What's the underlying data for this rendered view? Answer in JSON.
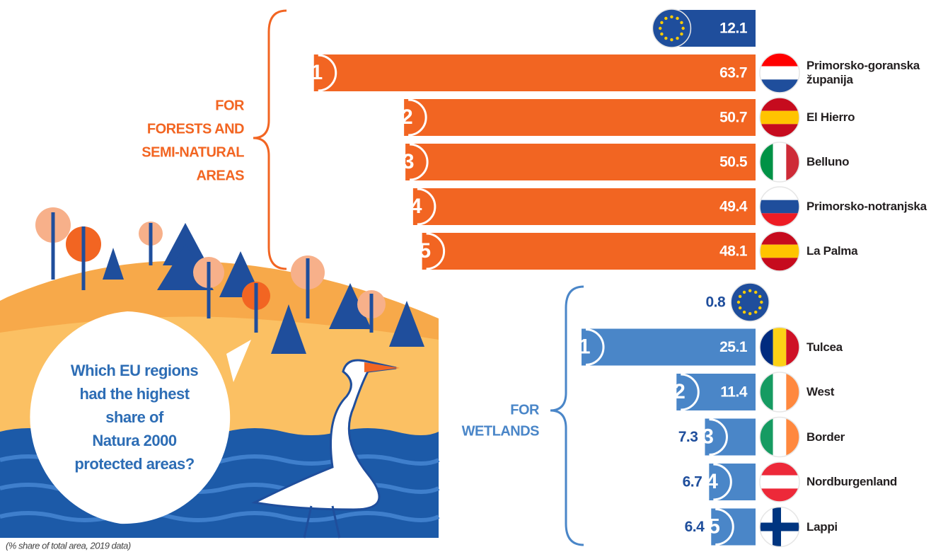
{
  "chart_data": {
    "type": "bar",
    "note": "(% share of total area, 2019 data)",
    "question": [
      "Which EU regions",
      "had the highest",
      "share of",
      "Natura 2000",
      "protected areas?"
    ],
    "eu_color": "#1f4e9c",
    "groups": [
      {
        "label": [
          "FOR",
          "FORESTS AND",
          "SEMI-NATURAL",
          "AREAS"
        ],
        "color": "#f26522",
        "categories": [
          null,
          "Primorsko-goranska županija",
          "El Hierro",
          "Belluno",
          "Primorsko-notranjska",
          "La Palma"
        ],
        "ranks": [
          null,
          1,
          2,
          3,
          4,
          5
        ],
        "values": [
          12.1,
          63.7,
          50.7,
          50.5,
          49.4,
          48.1
        ]
      },
      {
        "label": [
          "FOR",
          "WETLANDS"
        ],
        "color": "#4a86c8",
        "categories": [
          null,
          "Tulcea",
          "West",
          "Border",
          "Nordburgenland",
          "Lappi"
        ],
        "ranks": [
          null,
          1,
          2,
          3,
          4,
          5
        ],
        "values": [
          0.8,
          25.1,
          11.4,
          7.3,
          6.7,
          6.4
        ]
      }
    ]
  }
}
